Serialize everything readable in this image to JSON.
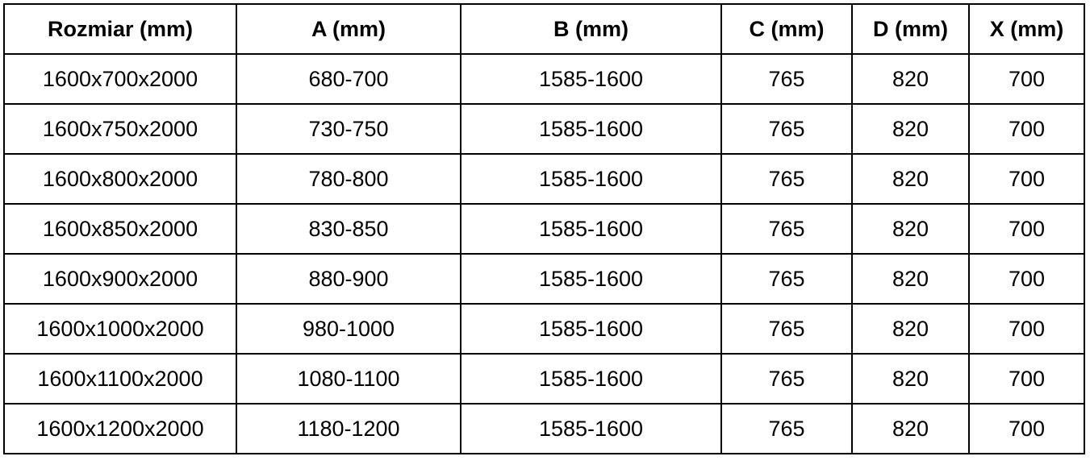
{
  "table": {
    "headers": [
      "Rozmiar (mm)",
      "A (mm)",
      "B (mm)",
      "C (mm)",
      "D (mm)",
      "X (mm)"
    ],
    "rows": [
      [
        "1600x700x2000",
        "680-700",
        "1585-1600",
        "765",
        "820",
        "700"
      ],
      [
        "1600x750x2000",
        "730-750",
        "1585-1600",
        "765",
        "820",
        "700"
      ],
      [
        "1600x800x2000",
        "780-800",
        "1585-1600",
        "765",
        "820",
        "700"
      ],
      [
        "1600x850x2000",
        "830-850",
        "1585-1600",
        "765",
        "820",
        "700"
      ],
      [
        "1600x900x2000",
        "880-900",
        "1585-1600",
        "765",
        "820",
        "700"
      ],
      [
        "1600x1000x2000",
        "980-1000",
        "1585-1600",
        "765",
        "820",
        "700"
      ],
      [
        "1600x1100x2000",
        "1080-1100",
        "1585-1600",
        "765",
        "820",
        "700"
      ],
      [
        "1600x1200x2000",
        "1180-1200",
        "1585-1600",
        "765",
        "820",
        "700"
      ]
    ]
  }
}
